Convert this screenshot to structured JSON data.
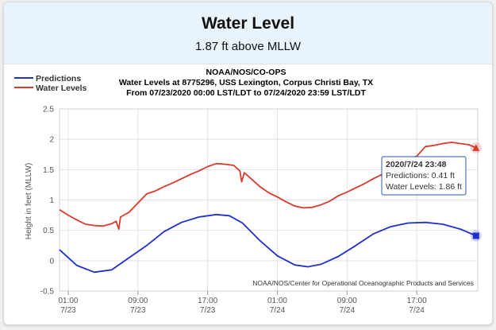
{
  "header": {
    "title": "Water Level",
    "subtitle": "1.87 ft above MLLW"
  },
  "chart_data": {
    "type": "line",
    "title": "NOAA/NOS/CO-OPS",
    "subtitle_line1": "Water Levels at 8775296, USS Lexington, Corpus Christi Bay, TX",
    "subtitle_line2": "From 07/23/2020 00:00 LST/LDT to 07/24/2020 23:59 LST/LDT",
    "ylabel": "Height in feet (MLLW)",
    "xlabel": "",
    "credit": "NOAA/NOS/Center for Operational Oceanographic Products and Services",
    "ylim": [
      -0.5,
      2.5
    ],
    "yticks": [
      "-0.5",
      "0",
      "0.5",
      "1",
      "1.5",
      "2",
      "2.5"
    ],
    "xlim": [
      0,
      48
    ],
    "xticks": [
      {
        "hour": 1,
        "time": "01:00",
        "date": "7/23"
      },
      {
        "hour": 9,
        "time": "09:00",
        "date": "7/23"
      },
      {
        "hour": 17,
        "time": "17:00",
        "date": "7/23"
      },
      {
        "hour": 25,
        "time": "01:00",
        "date": "7/24"
      },
      {
        "hour": 33,
        "time": "09:00",
        "date": "7/24"
      },
      {
        "hour": 41,
        "time": "17:00",
        "date": "7/24"
      }
    ],
    "grid": true,
    "legend_position": "top-left",
    "series": [
      {
        "name": "Predictions",
        "color": "#1f2fd0",
        "x": [
          0,
          2,
          4,
          6,
          8,
          10,
          12,
          14,
          16,
          18,
          19.5,
          21,
          23,
          25,
          27,
          28.5,
          30,
          32,
          34,
          36,
          38,
          40,
          42,
          44,
          46,
          47.8
        ],
        "y": [
          0.18,
          -0.08,
          -0.19,
          -0.15,
          0.05,
          0.25,
          0.48,
          0.63,
          0.72,
          0.76,
          0.74,
          0.62,
          0.33,
          0.08,
          -0.07,
          -0.1,
          -0.06,
          0.07,
          0.25,
          0.44,
          0.56,
          0.62,
          0.63,
          0.6,
          0.52,
          0.41
        ]
      },
      {
        "name": "Water Levels",
        "color": "#d93a2b",
        "x": [
          0,
          1,
          2,
          3,
          4,
          5,
          6,
          6.5,
          6.8,
          7,
          8,
          9,
          10,
          11,
          12,
          13,
          14,
          15,
          16,
          17,
          18,
          19,
          20,
          20.7,
          20.9,
          21.2,
          22,
          23,
          24,
          25,
          26,
          27,
          28,
          29,
          30,
          31,
          32,
          33,
          34,
          35,
          36,
          37,
          38,
          38.5,
          39,
          40,
          41,
          42,
          43,
          44,
          45,
          46,
          47,
          47.8
        ],
        "y": [
          0.84,
          0.75,
          0.67,
          0.6,
          0.58,
          0.57,
          0.61,
          0.65,
          0.52,
          0.72,
          0.8,
          0.95,
          1.1,
          1.15,
          1.22,
          1.28,
          1.35,
          1.42,
          1.48,
          1.55,
          1.6,
          1.59,
          1.57,
          1.48,
          1.3,
          1.45,
          1.35,
          1.22,
          1.12,
          1.05,
          0.97,
          0.9,
          0.87,
          0.88,
          0.92,
          0.98,
          1.07,
          1.13,
          1.2,
          1.27,
          1.35,
          1.42,
          1.5,
          1.47,
          1.58,
          1.68,
          1.72,
          1.88,
          1.9,
          1.93,
          1.95,
          1.93,
          1.91,
          1.86
        ]
      }
    ],
    "tooltip": {
      "title": "2020/7/24 23:48",
      "lines": [
        "Predictions: 0.41 ft",
        "Water Levels: 1.86 ft"
      ]
    }
  }
}
